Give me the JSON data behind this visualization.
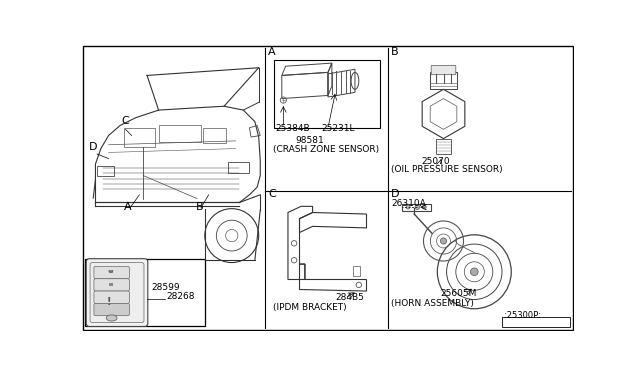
{
  "bg_color": "#ffffff",
  "labels": {
    "A_label": "A",
    "B_label": "B",
    "C_label": "C",
    "D_label": "D",
    "A_part1": "25384B",
    "A_part2": "25231L",
    "A_main": "98581",
    "A_desc": "(CRASH ZONE SENSOR)",
    "B_part": "25070",
    "B_desc": "(OIL PRESSURE SENSOR)",
    "C_part": "284B5",
    "C_desc": "(IPDM BRACKET)",
    "D_part1": "26310A",
    "D_part2": "25605M",
    "D_desc": "(HORN ASSEMBLY)",
    "D_code": ":25300P:",
    "key_part1": "28599",
    "key_part2": "28268"
  },
  "font_size_label": 8,
  "font_size_part": 6.5,
  "font_size_desc": 6.5
}
